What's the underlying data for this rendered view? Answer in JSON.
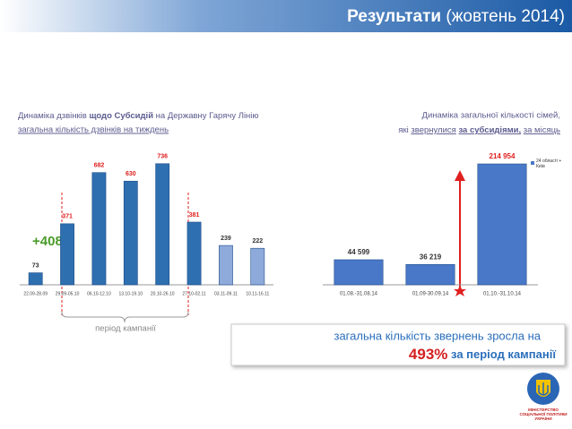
{
  "header": {
    "title_bold": "Результати",
    "title_rest": "(жовтень 2014)"
  },
  "chart_data": [
    {
      "type": "bar",
      "title_parts": [
        "Динаміка дзвінків",
        "щодо Субсидій",
        "на Державну Гарячу Лінію"
      ],
      "subtitle": "загальна кількість дзвінків на тиждень",
      "categories": [
        "22.09-28.09",
        "29.09-05.10",
        "06.10-12.10",
        "13.10-19.10",
        "20.10-26.10",
        "27.10-02.11",
        "03.11-09.11",
        "10.11-16.11"
      ],
      "values": [
        73,
        371,
        682,
        630,
        736,
        381,
        239,
        222
      ],
      "colors": [
        "#2e6fb0",
        "#2e6fb0",
        "#2e6fb0",
        "#2e6fb0",
        "#2e6fb0",
        "#2e6fb0",
        "#8eaadb",
        "#8eaadb"
      ],
      "label_colors": [
        "#333333",
        "#e02020",
        "#e02020",
        "#e02020",
        "#e02020",
        "#e02020",
        "#333333",
        "#333333"
      ],
      "ylim": [
        0,
        800
      ],
      "annotations": [
        "+408%",
        "період кампанії"
      ]
    },
    {
      "type": "bar",
      "title_parts": [
        "Динаміка загальної кількості сімей,",
        "які",
        "звернулися",
        "за субсидіями,",
        "за місяць"
      ],
      "categories": [
        "01.08.-31.08.14",
        "01.09-30.09.14",
        "01.10.-31.10.14"
      ],
      "series": [
        {
          "name": "24 області + Київ",
          "color": "#4a78c8",
          "values": [
            44599,
            36219,
            214954
          ],
          "value_labels": [
            "44 599",
            "36 219",
            "214 954"
          ],
          "label_colors": [
            "#333333",
            "#333333",
            "#e02020"
          ]
        }
      ],
      "ylim": [
        0,
        250000
      ]
    }
  ],
  "callout": {
    "line1": "загальна кількість звернень зросла на",
    "percent": "493%",
    "rest": "за період кампанії"
  },
  "logo": {
    "text": "МІНІСТЕРСТВО СОЦІАЛЬНОЇ ПОЛІТИКИ УКРАЇНИ"
  }
}
